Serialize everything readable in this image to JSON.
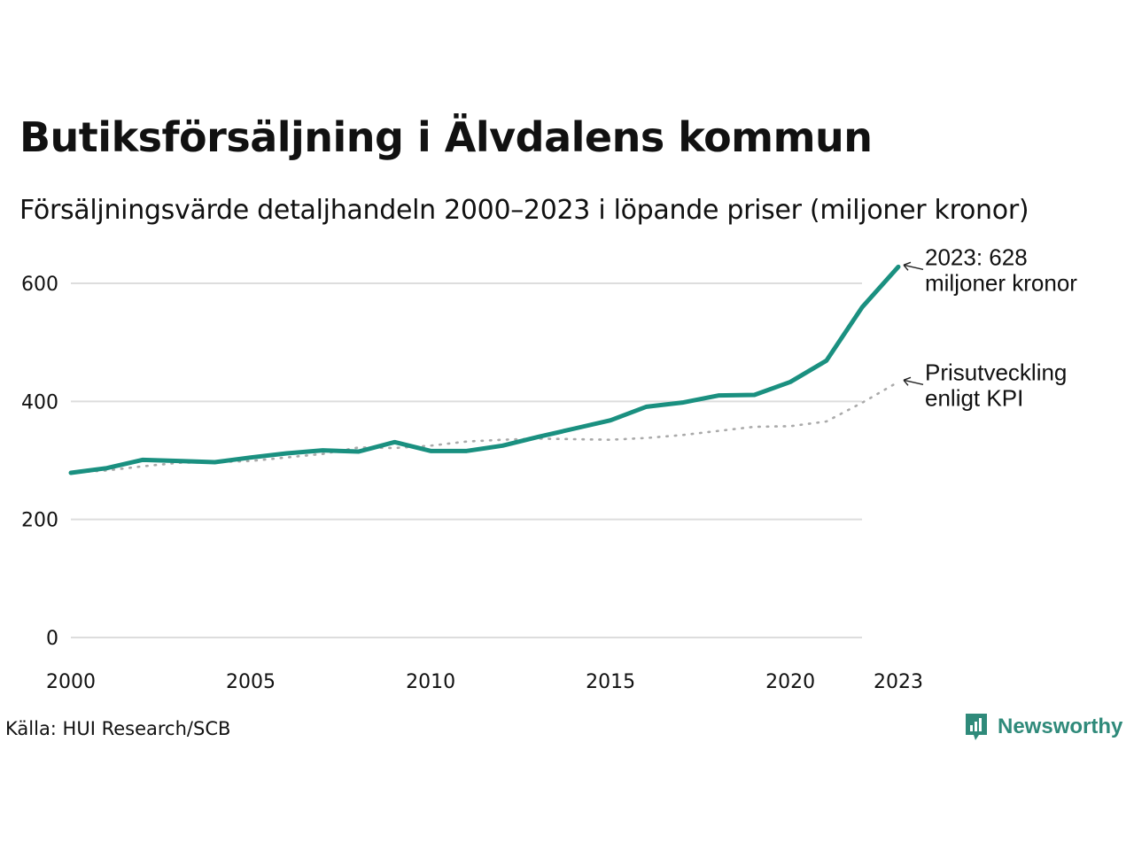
{
  "title": "Butiksförsäljning i Älvdalens kommun",
  "subtitle": "Försäljningsvärde detaljhandeln 2000–2023 i löpande priser (miljoner kronor)",
  "source": "Källa: HUI Research/SCB",
  "brand": {
    "name": "Newsworthy",
    "icon": "newsworthy-logo-icon",
    "color": "#2f8a7a"
  },
  "colors": {
    "sales": "#1a9080",
    "kpi": "#aaaaaa",
    "grid": "#dddddd"
  },
  "chart_data": {
    "type": "line",
    "title": "Butiksförsäljning i Älvdalens kommun",
    "xlabel": "",
    "ylabel": "",
    "xlim": [
      2000,
      2023
    ],
    "ylim": [
      0,
      630
    ],
    "y_ticks": [
      0,
      200,
      400,
      600
    ],
    "y_tick_labels": [
      "0",
      "200",
      "400",
      "600"
    ],
    "x_ticks": [
      2000,
      2005,
      2010,
      2015,
      2020,
      2023
    ],
    "x_tick_labels": [
      "2000",
      "2005",
      "2010",
      "2015",
      "2020",
      "2023"
    ],
    "x": [
      2000,
      2001,
      2002,
      2003,
      2004,
      2005,
      2006,
      2007,
      2008,
      2009,
      2010,
      2011,
      2012,
      2013,
      2014,
      2015,
      2016,
      2017,
      2018,
      2019,
      2020,
      2021,
      2022,
      2023
    ],
    "series": [
      {
        "name": "Försäljningsvärde",
        "style": "solid",
        "values": [
          279,
          287,
          301,
          299,
          297,
          305,
          312,
          317,
          315,
          331,
          316,
          316,
          325,
          340,
          354,
          368,
          391,
          398,
          410,
          411,
          433,
          469,
          560,
          628
        ]
      },
      {
        "name": "Prisutveckling enligt KPI",
        "style": "dotted",
        "values": [
          279,
          283,
          290,
          296,
          297,
          299,
          305,
          311,
          322,
          321,
          325,
          332,
          335,
          337,
          336,
          335,
          338,
          343,
          350,
          357,
          358,
          366,
          398,
          433
        ]
      }
    ],
    "annotations": [
      {
        "series": 0,
        "lines": [
          "2023: 628",
          "miljoner kronor"
        ]
      },
      {
        "series": 1,
        "lines": [
          "Prisutveckling",
          "enligt KPI"
        ]
      }
    ]
  }
}
